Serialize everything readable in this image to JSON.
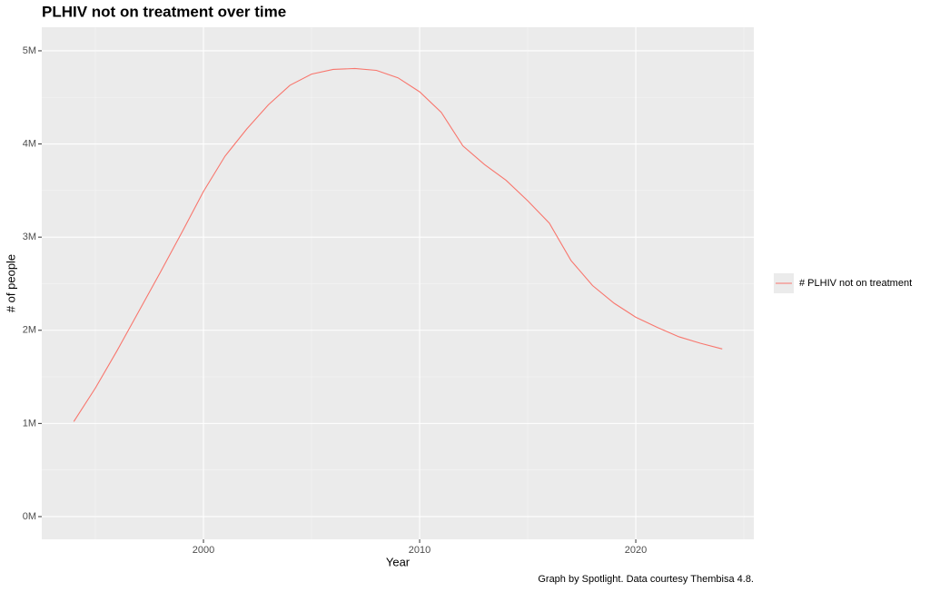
{
  "chart_data": {
    "type": "line",
    "title": "PLHIV not on treatment over time",
    "x_label": "Year",
    "y_label": "# of people",
    "caption": "Graph by Spotlight. Data courtesy Thembisa 4.8.",
    "x": [
      1994,
      1995,
      1996,
      1997,
      1998,
      1999,
      2000,
      2001,
      2002,
      2003,
      2004,
      2005,
      2006,
      2007,
      2008,
      2009,
      2010,
      2011,
      2012,
      2013,
      2014,
      2015,
      2016,
      2017,
      2018,
      2019,
      2020,
      2021,
      2022,
      2023,
      2024
    ],
    "series": [
      {
        "name": "# PLHIV not on treatment",
        "color": "#f8766d",
        "values": [
          1020000,
          1380000,
          1780000,
          2200000,
          2620000,
          3050000,
          3490000,
          3870000,
          4160000,
          4420000,
          4630000,
          4750000,
          4800000,
          4810000,
          4790000,
          4710000,
          4560000,
          4340000,
          3980000,
          3780000,
          3610000,
          3390000,
          3150000,
          2750000,
          2480000,
          2290000,
          2140000,
          2030000,
          1930000,
          1860000,
          1800000
        ]
      }
    ],
    "xlim": [
      1992.52,
      2025.46
    ],
    "xticks": [
      2000,
      2010,
      2020
    ],
    "ylim": [
      -244000,
      5253000
    ],
    "yticks": [
      {
        "value": 0,
        "label": "0M"
      },
      {
        "value": 1000000,
        "label": "1M"
      },
      {
        "value": 2000000,
        "label": "2M"
      },
      {
        "value": 3000000,
        "label": "3M"
      },
      {
        "value": 4000000,
        "label": "4M"
      },
      {
        "value": 5000000,
        "label": "5M"
      }
    ],
    "grid": true,
    "minor_grid": true,
    "legend": "right"
  }
}
